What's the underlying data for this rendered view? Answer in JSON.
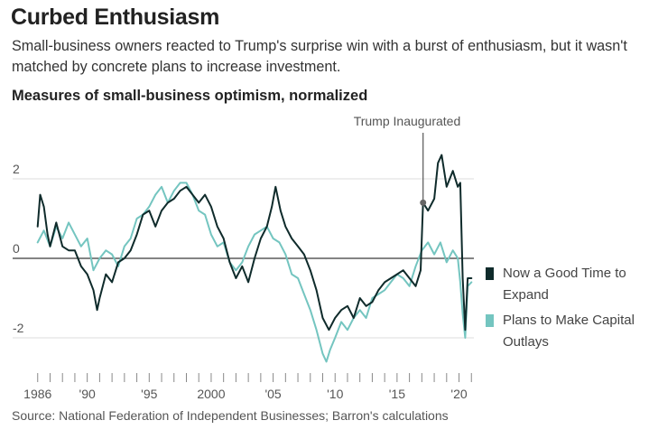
{
  "title": "Curbed Enthusiasm",
  "subtitle": "Small-business owners reacted to Trump's surprise win with a burst of enthusiasm, but it wasn't matched by concrete plans to increase investment.",
  "chart_title": "Measures of small-business optimism, normalized",
  "source": "Source: National Federation of Independent Businesses; Barron's calculations",
  "chart_data": {
    "type": "line",
    "title": "Measures of small-business optimism, normalized",
    "xlabel": "",
    "ylabel": "",
    "xlim": [
      1986,
      2021
    ],
    "ylim": [
      -2.85,
      2.85
    ],
    "x_ticks": [
      {
        "value": 1986,
        "label": "1986"
      },
      {
        "value": 1990,
        "label": "'90"
      },
      {
        "value": 1995,
        "label": "'95"
      },
      {
        "value": 2000,
        "label": "2000"
      },
      {
        "value": 2005,
        "label": "'05"
      },
      {
        "value": 2010,
        "label": "'10"
      },
      {
        "value": 2015,
        "label": "'15"
      },
      {
        "value": 2020,
        "label": "'20"
      }
    ],
    "y_ticks": [
      {
        "value": 2,
        "label": "2"
      },
      {
        "value": 0,
        "label": "0"
      },
      {
        "value": -2,
        "label": "-2"
      }
    ],
    "grid": true,
    "legend_position": "right",
    "annotation": {
      "label": "Trump Inaugurated",
      "x": 2017.1,
      "y": 1.4
    },
    "series": [
      {
        "name": "Now a Good Time to Expand",
        "color": "#0f2b2b",
        "x": [
          1986.0,
          1986.2,
          1986.5,
          1986.8,
          1987.0,
          1987.5,
          1988.0,
          1988.5,
          1989.0,
          1989.5,
          1990.0,
          1990.5,
          1990.8,
          1991.0,
          1991.5,
          1992.0,
          1992.5,
          1993.0,
          1993.5,
          1994.0,
          1994.5,
          1995.0,
          1995.5,
          1996.0,
          1996.5,
          1997.0,
          1997.5,
          1998.0,
          1998.5,
          1999.0,
          1999.5,
          2000.0,
          2000.5,
          2001.0,
          2001.5,
          2002.0,
          2002.5,
          2003.0,
          2003.5,
          2004.0,
          2004.5,
          2004.9,
          2005.2,
          2005.6,
          2006.0,
          2006.5,
          2007.0,
          2007.5,
          2008.0,
          2008.5,
          2009.0,
          2009.5,
          2010.0,
          2010.5,
          2011.0,
          2011.5,
          2012.0,
          2012.5,
          2013.0,
          2013.5,
          2014.0,
          2014.5,
          2015.0,
          2015.5,
          2016.0,
          2016.5,
          2016.9,
          2017.1,
          2017.5,
          2018.0,
          2018.3,
          2018.6,
          2019.0,
          2019.5,
          2019.9,
          2020.1,
          2020.3,
          2020.5,
          2020.7,
          2021.0
        ],
        "y": [
          0.8,
          1.6,
          1.3,
          0.6,
          0.3,
          0.9,
          0.3,
          0.2,
          0.2,
          -0.2,
          -0.4,
          -0.8,
          -1.3,
          -1.0,
          -0.4,
          -0.6,
          -0.1,
          0.0,
          0.2,
          0.6,
          1.1,
          1.2,
          0.8,
          1.2,
          1.4,
          1.5,
          1.7,
          1.8,
          1.6,
          1.4,
          1.6,
          1.3,
          0.8,
          0.5,
          -0.1,
          -0.5,
          -0.2,
          -0.6,
          0.0,
          0.5,
          0.8,
          1.3,
          1.8,
          1.2,
          0.8,
          0.5,
          0.3,
          0.1,
          -0.3,
          -0.8,
          -1.5,
          -1.8,
          -1.5,
          -1.3,
          -1.2,
          -1.5,
          -1.0,
          -1.2,
          -1.1,
          -0.8,
          -0.6,
          -0.5,
          -0.4,
          -0.3,
          -0.5,
          -0.7,
          -0.3,
          1.4,
          1.2,
          1.5,
          2.4,
          2.6,
          1.8,
          2.2,
          1.8,
          1.9,
          -0.5,
          -1.8,
          -0.5,
          -0.5
        ]
      },
      {
        "name": "Plans to Make Capital Outlays",
        "color": "#74c5c0",
        "x": [
          1986.0,
          1986.5,
          1987.0,
          1987.5,
          1988.0,
          1988.5,
          1989.0,
          1989.5,
          1990.0,
          1990.5,
          1991.0,
          1991.5,
          1992.0,
          1992.5,
          1993.0,
          1993.5,
          1994.0,
          1994.5,
          1995.0,
          1995.5,
          1996.0,
          1996.5,
          1997.0,
          1997.5,
          1998.0,
          1998.5,
          1999.0,
          1999.5,
          2000.0,
          2000.5,
          2001.0,
          2001.5,
          2002.0,
          2002.5,
          2003.0,
          2003.5,
          2004.0,
          2004.5,
          2005.0,
          2005.5,
          2006.0,
          2006.5,
          2007.0,
          2007.5,
          2008.0,
          2008.5,
          2009.0,
          2009.3,
          2009.6,
          2010.0,
          2010.5,
          2011.0,
          2011.5,
          2012.0,
          2012.5,
          2013.0,
          2013.5,
          2014.0,
          2014.5,
          2015.0,
          2015.5,
          2016.0,
          2016.5,
          2017.0,
          2017.5,
          2018.0,
          2018.5,
          2019.0,
          2019.5,
          2019.9,
          2020.1,
          2020.3,
          2020.5,
          2020.7,
          2021.0
        ],
        "y": [
          0.4,
          0.7,
          0.3,
          0.8,
          0.5,
          0.9,
          0.6,
          0.3,
          0.5,
          -0.3,
          0.0,
          0.2,
          0.1,
          -0.2,
          0.3,
          0.5,
          1.0,
          1.1,
          1.3,
          1.6,
          1.8,
          1.4,
          1.7,
          1.9,
          1.9,
          1.6,
          1.2,
          1.1,
          0.6,
          0.3,
          0.4,
          -0.1,
          -0.3,
          -0.1,
          0.3,
          0.6,
          0.7,
          0.8,
          0.5,
          0.4,
          0.1,
          -0.4,
          -0.5,
          -0.9,
          -1.3,
          -1.8,
          -2.4,
          -2.6,
          -2.3,
          -2.0,
          -1.6,
          -1.8,
          -1.5,
          -1.3,
          -1.5,
          -1.0,
          -0.9,
          -0.8,
          -0.6,
          -0.4,
          -0.5,
          -0.7,
          -0.2,
          0.2,
          0.4,
          0.1,
          0.4,
          -0.1,
          0.2,
          0.0,
          -0.6,
          -1.4,
          -2.0,
          -0.7,
          -0.6
        ]
      }
    ]
  }
}
